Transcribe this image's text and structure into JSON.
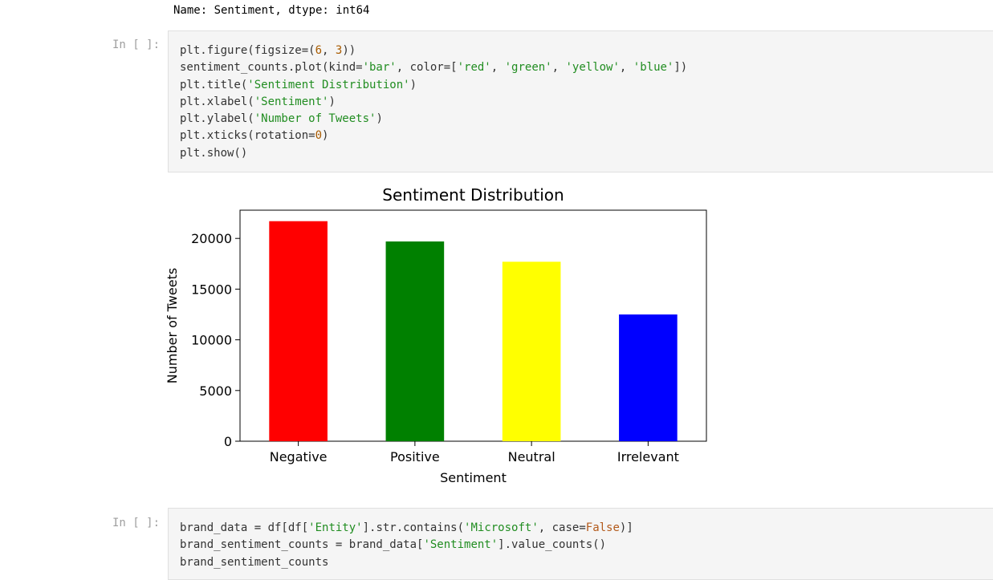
{
  "top_output": "Name: Sentiment, dtype: int64",
  "cells": [
    {
      "prompt": "In [ ]:",
      "code": [
        [
          {
            "t": "plt.figure(figsize=("
          },
          {
            "t": "6",
            "c": "num"
          },
          {
            "t": ", "
          },
          {
            "t": "3",
            "c": "num"
          },
          {
            "t": "))"
          }
        ],
        [
          {
            "t": "sentiment_counts.plot(kind="
          },
          {
            "t": "'bar'",
            "c": "str"
          },
          {
            "t": ", color=["
          },
          {
            "t": "'red'",
            "c": "str"
          },
          {
            "t": ", "
          },
          {
            "t": "'green'",
            "c": "str"
          },
          {
            "t": ", "
          },
          {
            "t": "'yellow'",
            "c": "str"
          },
          {
            "t": ", "
          },
          {
            "t": "'blue'",
            "c": "str"
          },
          {
            "t": "])"
          }
        ],
        [
          {
            "t": "plt.title("
          },
          {
            "t": "'Sentiment Distribution'",
            "c": "str"
          },
          {
            "t": ")"
          }
        ],
        [
          {
            "t": "plt.xlabel("
          },
          {
            "t": "'Sentiment'",
            "c": "str"
          },
          {
            "t": ")"
          }
        ],
        [
          {
            "t": "plt.ylabel("
          },
          {
            "t": "'Number of Tweets'",
            "c": "str"
          },
          {
            "t": ")"
          }
        ],
        [
          {
            "t": "plt.xticks(rotation="
          },
          {
            "t": "0",
            "c": "num"
          },
          {
            "t": ")"
          }
        ],
        [
          {
            "t": "plt.show()"
          }
        ]
      ]
    },
    {
      "prompt": "In [ ]:",
      "code": [
        [
          {
            "t": "brand_data = df[df["
          },
          {
            "t": "'Entity'",
            "c": "str"
          },
          {
            "t": "].str.contains("
          },
          {
            "t": "'Microsoft'",
            "c": "str"
          },
          {
            "t": ", case="
          },
          {
            "t": "False",
            "c": "kw"
          },
          {
            "t": ")]"
          }
        ],
        [
          {
            "t": "brand_sentiment_counts = brand_data["
          },
          {
            "t": "'Sentiment'",
            "c": "str"
          },
          {
            "t": "].value_counts()"
          }
        ],
        [
          {
            "t": "brand_sentiment_counts"
          }
        ]
      ]
    }
  ],
  "chart_data": {
    "type": "bar",
    "title": "Sentiment Distribution",
    "xlabel": "Sentiment",
    "ylabel": "Number of Tweets",
    "categories": [
      "Negative",
      "Positive",
      "Neutral",
      "Irrelevant"
    ],
    "values": [
      21700,
      19700,
      17700,
      12500
    ],
    "colors": [
      "#ff0000",
      "#008000",
      "#ffff00",
      "#0000ff"
    ],
    "yticks": [
      0,
      5000,
      10000,
      15000,
      20000
    ],
    "ylim": [
      0,
      22785
    ],
    "grid": false
  }
}
